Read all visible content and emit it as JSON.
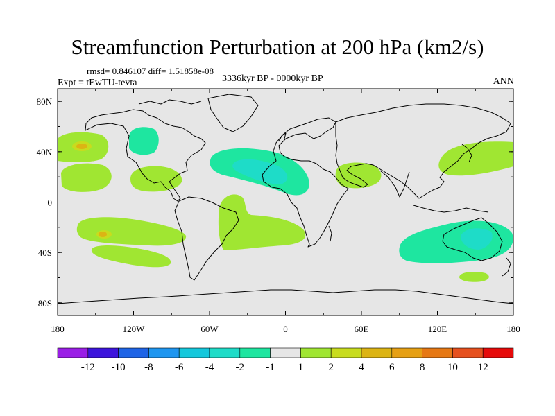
{
  "title": "Streamfunction Perturbation at 200 hPa (km2/s)",
  "stats": "rmsd= 0.846107 diff= 1.51858e-08",
  "experiment": "Expt = tEwTU-tevta",
  "period": "3336kyr BP - 0000kyr BP",
  "season": "ANN",
  "map": {
    "ocean_color": "#e6e6e6",
    "coast_color": "#000000",
    "lon_ticks": [
      "180",
      "120W",
      "60W",
      "0",
      "60E",
      "120E",
      "180"
    ],
    "lat_ticks": [
      "80N",
      "40N",
      "0",
      "40S",
      "80S"
    ]
  },
  "colorbar": {
    "colors": [
      "#9a1ee6",
      "#3c14dc",
      "#1e64e6",
      "#1e96f0",
      "#14c8dc",
      "#1edcc8",
      "#1ee6a0",
      "#e6e6e6",
      "#a0e632",
      "#c8dc1e",
      "#dcb414",
      "#e6a014",
      "#e67814",
      "#e6501e",
      "#e60a0a"
    ],
    "labels": [
      "-12",
      "-10",
      "-8",
      "-6",
      "-4",
      "-2",
      "-1",
      "1",
      "2",
      "4",
      "6",
      "8",
      "10",
      "12"
    ]
  }
}
